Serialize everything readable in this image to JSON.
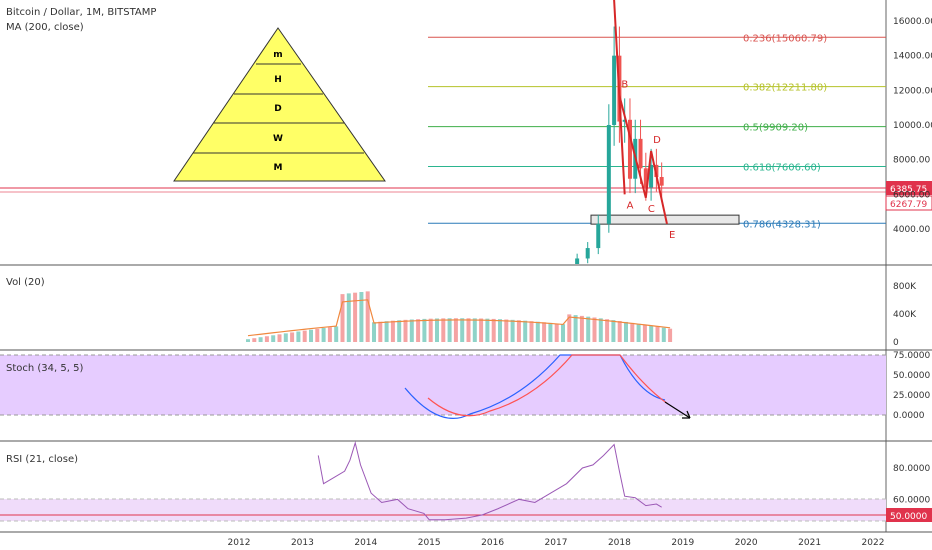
{
  "header": {
    "title": "Bitcoin / Dollar, 1M, BITSTAMP",
    "ma_label": "MA (200, close)"
  },
  "pyramid": {
    "labels": [
      "m",
      "H",
      "D",
      "W",
      "M"
    ],
    "fill": "#ffff66"
  },
  "price_axis": {
    "ticks": [
      "16000.00",
      "14000.00",
      "12000.00",
      "10000.00",
      "8000.00",
      "6000.00",
      "4000.00"
    ],
    "tick_values": [
      16000,
      14000,
      12000,
      10000,
      8000,
      6000,
      4000
    ],
    "last_price": "6385.75",
    "ma_price": "6267.79",
    "badge_color": "#e0334c"
  },
  "fib_levels": [
    {
      "label": "0.236(15060.79)",
      "value": 15060.79,
      "color": "#d9534f"
    },
    {
      "label": "0.382(12211.80)",
      "value": 12211.8,
      "color": "#b5c22a"
    },
    {
      "label": "0.5(9909.20)",
      "value": 9909.2,
      "color": "#3fae49"
    },
    {
      "label": "0.618(7606.60)",
      "value": 7606.6,
      "color": "#2bb58f"
    },
    {
      "label": "0.786(4328.31)",
      "value": 4328.31,
      "color": "#2a7ab8"
    }
  ],
  "wave_labels": [
    "A",
    "B",
    "C",
    "D",
    "E"
  ],
  "volume": {
    "label": "Vol (20)",
    "ticks": [
      "800K",
      "400K",
      "0"
    ],
    "tick_values": [
      800,
      400,
      0
    ]
  },
  "stoch": {
    "label": "Stoch (34, 5, 5)",
    "ticks": [
      "75.0000",
      "50.0000",
      "25.0000",
      "0.0000"
    ],
    "tick_values": [
      75,
      50,
      25,
      0
    ],
    "band_color": "#e6ccff"
  },
  "rsi": {
    "label": "RSI (21, close)",
    "ticks": [
      "80.0000",
      "60.0000"
    ],
    "tick_values": [
      80,
      60
    ],
    "current": "50.0000",
    "line_color": "#9b59b6"
  },
  "time_axis": {
    "years": [
      "2012",
      "2013",
      "2014",
      "2015",
      "2016",
      "2017",
      "2018",
      "2019",
      "2020",
      "2021",
      "2022"
    ]
  },
  "chart_data": {
    "type": "line",
    "title": "Bitcoin / Dollar, 1M, BITSTAMP",
    "price_close": [
      {
        "x": "2017-05",
        "y": 2300
      },
      {
        "x": "2017-07",
        "y": 2900
      },
      {
        "x": "2017-09",
        "y": 4300
      },
      {
        "x": "2017-11",
        "y": 10000
      },
      {
        "x": "2017-12",
        "y": 14000
      },
      {
        "x": "2018-01",
        "y": 10200
      },
      {
        "x": "2018-02",
        "y": 10300
      },
      {
        "x": "2018-03",
        "y": 6900
      },
      {
        "x": "2018-04",
        "y": 9200
      },
      {
        "x": "2018-05",
        "y": 7500
      },
      {
        "x": "2018-06",
        "y": 6400
      },
      {
        "x": "2018-07",
        "y": 7700
      },
      {
        "x": "2018-08",
        "y": 7000
      },
      {
        "x": "2018-09",
        "y": 6500
      }
    ],
    "projection": [
      {
        "label": "A",
        "x": "2018-02",
        "y": 6000
      },
      {
        "label": "B",
        "x": "2018-01",
        "y": 11700
      },
      {
        "label": "C",
        "x": "2018-06",
        "y": 5800
      },
      {
        "label": "D",
        "x": "2018-07",
        "y": 8500
      },
      {
        "label": "E",
        "x": "2018-10",
        "y": 4300
      }
    ],
    "rsi_series": [
      {
        "x": "2013-04",
        "y": 88
      },
      {
        "x": "2013-05",
        "y": 70
      },
      {
        "x": "2013-07",
        "y": 74
      },
      {
        "x": "2013-09",
        "y": 78
      },
      {
        "x": "2013-10",
        "y": 85
      },
      {
        "x": "2013-11",
        "y": 96
      },
      {
        "x": "2013-12",
        "y": 82
      },
      {
        "x": "2014-02",
        "y": 64
      },
      {
        "x": "2014-04",
        "y": 58
      },
      {
        "x": "2014-07",
        "y": 60
      },
      {
        "x": "2014-09",
        "y": 54
      },
      {
        "x": "2014-12",
        "y": 51
      },
      {
        "x": "2015-01",
        "y": 47
      },
      {
        "x": "2015-04",
        "y": 47
      },
      {
        "x": "2015-08",
        "y": 48
      },
      {
        "x": "2015-11",
        "y": 50
      },
      {
        "x": "2016-02",
        "y": 54
      },
      {
        "x": "2016-06",
        "y": 60
      },
      {
        "x": "2016-09",
        "y": 58
      },
      {
        "x": "2016-12",
        "y": 64
      },
      {
        "x": "2017-03",
        "y": 70
      },
      {
        "x": "2017-06",
        "y": 80
      },
      {
        "x": "2017-08",
        "y": 82
      },
      {
        "x": "2017-10",
        "y": 88
      },
      {
        "x": "2017-12",
        "y": 95
      },
      {
        "x": "2018-01",
        "y": 78
      },
      {
        "x": "2018-02",
        "y": 62
      },
      {
        "x": "2018-04",
        "y": 61
      },
      {
        "x": "2018-06",
        "y": 56
      },
      {
        "x": "2018-08",
        "y": 57
      },
      {
        "x": "2018-09",
        "y": 55
      }
    ]
  }
}
